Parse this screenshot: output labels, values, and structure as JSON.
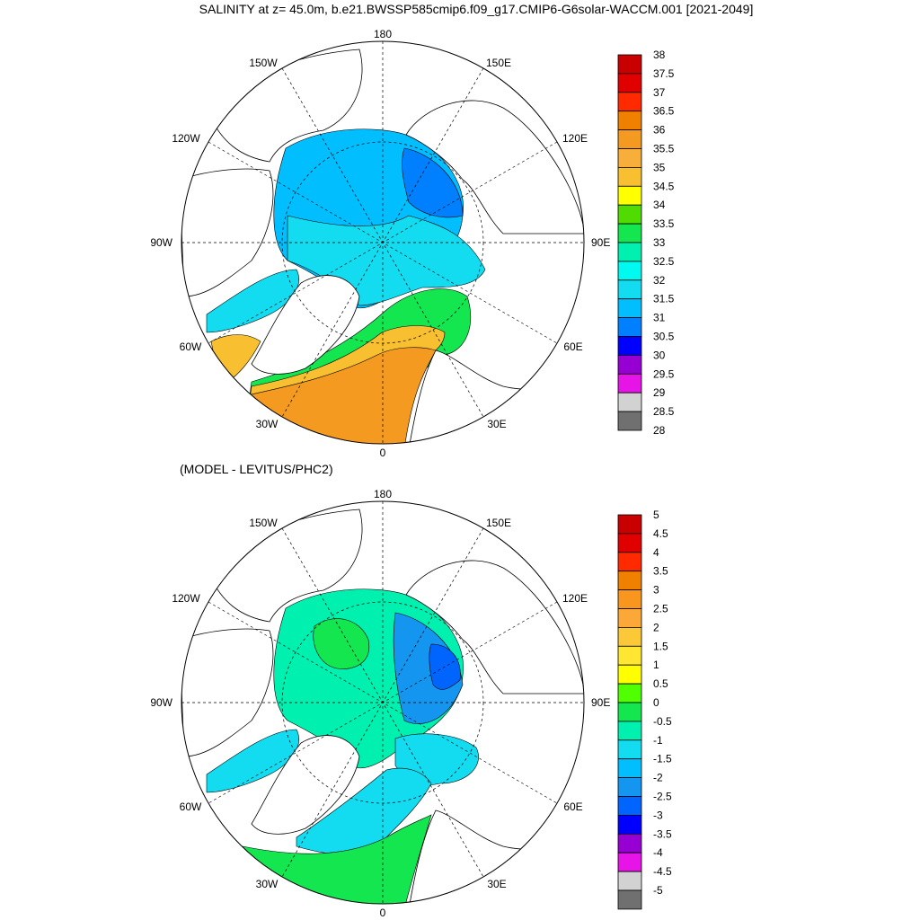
{
  "figure": {
    "title": "SALINITY at z=  45.0m, b.e21.BWSSP585cmip6.f09_g17.CMIP6-G6solar-WACCM.001 [2021-2049]",
    "subtitle": "(MODEL - LEVITUS/PHC2)"
  },
  "top_map": {
    "longitude_labels": {
      "top": "180",
      "bottom": "0",
      "left": "90W",
      "right": "90E",
      "upper_left": "150W",
      "upper_right": "150E",
      "mid_left": "120W",
      "mid_right": "120E",
      "lower_left": "60W",
      "lower_right": "60E",
      "bottom_left": "30W",
      "bottom_right": "30E"
    },
    "colorbar": {
      "labels": [
        "38",
        "37.5",
        "37",
        "36.5",
        "36",
        "35.5",
        "35",
        "34.5",
        "34",
        "33.5",
        "33",
        "32.5",
        "32",
        "31.5",
        "31",
        "30.5",
        "30",
        "29.5",
        "29",
        "28.5",
        "28"
      ],
      "colors": [
        "#c80000",
        "#e10000",
        "#ff2a00",
        "#f08000",
        "#f59a20",
        "#f8ae3a",
        "#f8c030",
        "#ffff00",
        "#50dc00",
        "#14e650",
        "#00f0b0",
        "#00faf0",
        "#14dcf0",
        "#00beff",
        "#0080ff",
        "#0000ff",
        "#9600d2",
        "#e614e6",
        "#d2d2d2",
        "#707070"
      ]
    }
  },
  "bottom_map": {
    "longitude_labels": {
      "top": "180",
      "bottom": "0",
      "left": "90W",
      "right": "90E",
      "upper_left": "150W",
      "upper_right": "150E",
      "mid_left": "120W",
      "mid_right": "120E",
      "lower_left": "60W",
      "lower_right": "60E",
      "bottom_left": "30W",
      "bottom_right": "30E"
    },
    "colorbar": {
      "labels": [
        "5",
        "4.5",
        "4",
        "3.5",
        "3",
        "2.5",
        "2",
        "1.5",
        "1",
        "0.5",
        "0",
        "-0.5",
        "-1",
        "-1.5",
        "-2",
        "-2.5",
        "-3",
        "-3.5",
        "-4",
        "-4.5",
        "-5"
      ],
      "colors": [
        "#c80000",
        "#e10000",
        "#ff2a00",
        "#f08000",
        "#f8961e",
        "#fba838",
        "#fbc838",
        "#ffe632",
        "#ffff00",
        "#50ff00",
        "#14e650",
        "#00f0b0",
        "#14dcf0",
        "#00beff",
        "#1496f0",
        "#0064ff",
        "#0000ff",
        "#9600d2",
        "#e614e6",
        "#d2d2d2",
        "#707070"
      ]
    }
  },
  "colors": {
    "arctic_top": "#00beff",
    "east_arctic_top": "#0080ff",
    "shelf_top": "#14dcf0",
    "atlantic_top": "#f59a20",
    "atlantic_warm_top": "#f8c030",
    "green_top": "#14e650",
    "arctic_bottom": "#00f0b0",
    "east_bottom": "#1496f0",
    "deep_east_bottom": "#0064ff",
    "atlantic_bottom": "#14e650",
    "cyan_bottom": "#14dcf0",
    "land": "#ffffff"
  }
}
